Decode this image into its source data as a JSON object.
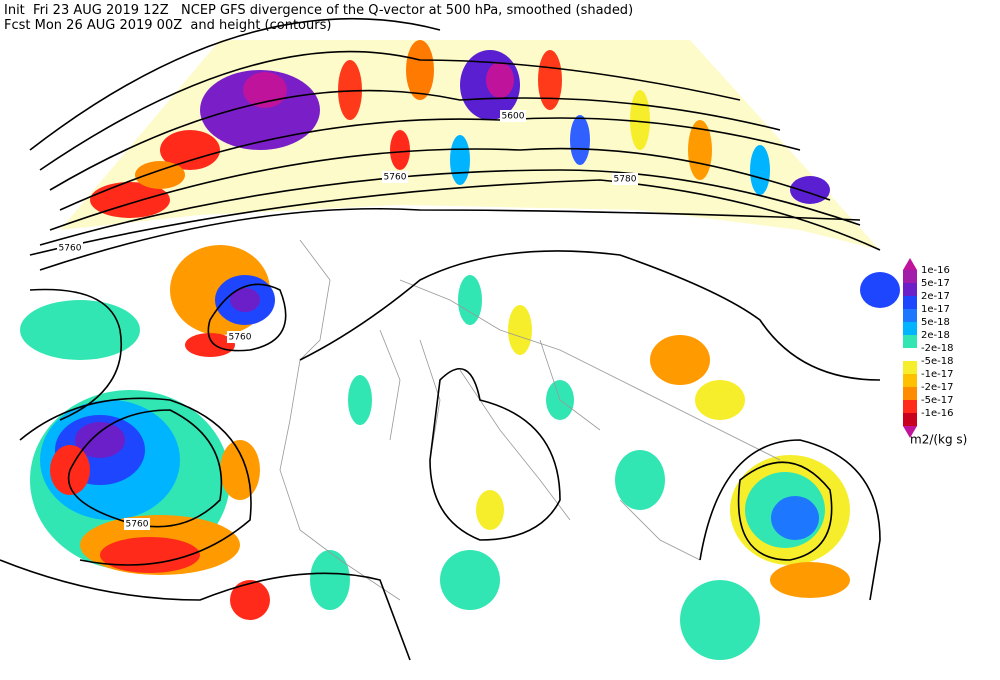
{
  "header": {
    "line1": "Init  Fri 23 AUG 2019 12Z   NCEP GFS divergence of the Q-vector at 500 hPa, smoothed (shaded)",
    "line2": "Fcst Mon 26 AUG 2019 00Z  and height (contours)"
  },
  "contour_labels": [
    "5600",
    "5760",
    "5780",
    "5760",
    "5760",
    "5760"
  ],
  "colorbar": {
    "labels": [
      "1e-16",
      "5e-17",
      "2e-17",
      "1e-17",
      "5e-18",
      "2e-18",
      "-2e-18",
      "-5e-18",
      "-1e-17",
      "-2e-17",
      "-5e-17",
      "-1e-16"
    ],
    "unit": "m2/(kg s)"
  }
}
